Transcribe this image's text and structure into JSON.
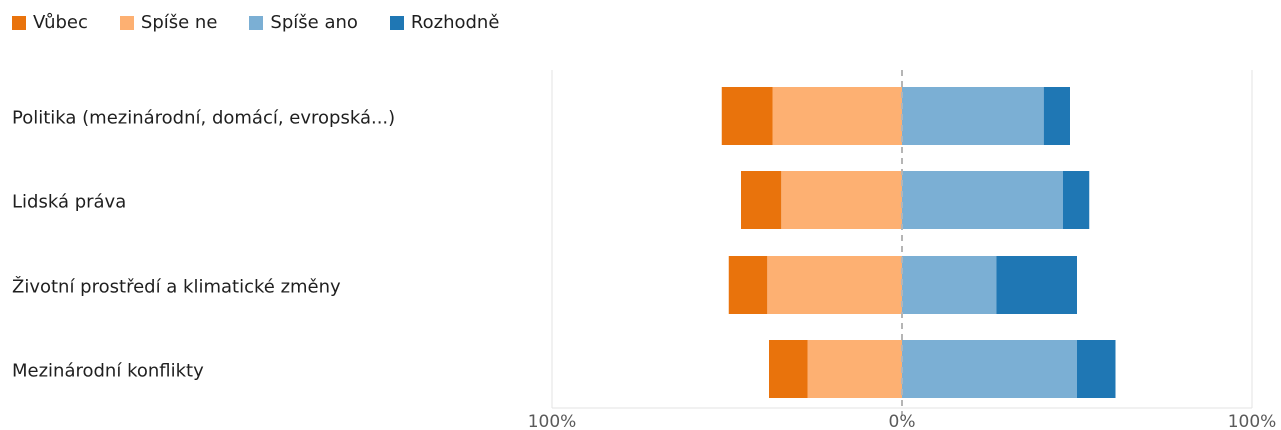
{
  "chart_data": {
    "type": "bar",
    "orientation": "horizontal",
    "stacked": "diverging",
    "legend_position": "top-left",
    "categories": [
      "Politika (mezinárodní, domácí, evropská...)",
      "Lidská práva",
      "Životní prostředí a klimatické změny",
      "Mezinárodní konflikty"
    ],
    "series": [
      {
        "name": "Vůbec",
        "side": "negative",
        "color": "#E9730C",
        "values": [
          14.5,
          11.5,
          11.0,
          11.0
        ]
      },
      {
        "name": "Spíše ne",
        "side": "negative",
        "color": "#FDB072",
        "values": [
          37.0,
          34.5,
          38.5,
          27.0
        ]
      },
      {
        "name": "Spíše ano",
        "side": "positive",
        "color": "#7BAFD4",
        "values": [
          40.5,
          46.0,
          27.0,
          50.0
        ]
      },
      {
        "name": "Rozhodně",
        "side": "positive",
        "color": "#1F77B4",
        "values": [
          7.5,
          7.5,
          23.0,
          11.0
        ]
      }
    ],
    "xlim": [
      -100,
      100
    ],
    "x_ticks": [
      "100%",
      "0%",
      "100%"
    ],
    "grid": true
  }
}
